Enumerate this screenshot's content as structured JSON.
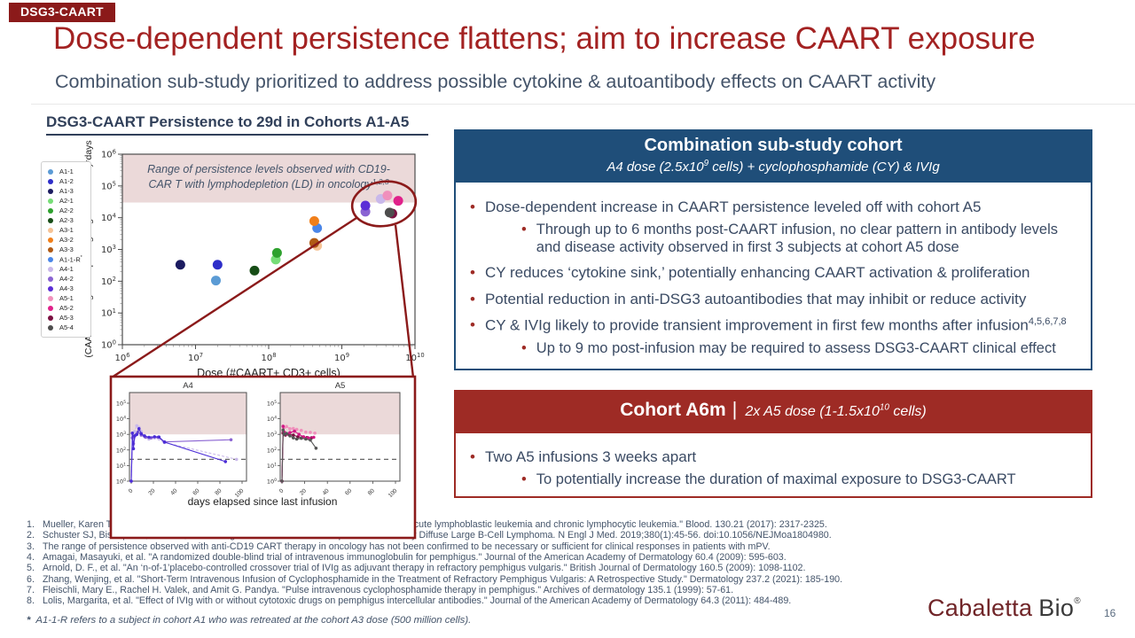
{
  "badge": "DSG3-CAART",
  "title": "Dose-dependent persistence flattens; aim to increase CAART exposure",
  "subtitle": "Combination sub-study prioritized to address possible cytokine & autoantibody effects on CAART activity",
  "colors": {
    "accent_red": "#8B1A1A",
    "title_red": "#A32222",
    "header_blue": "#1F4E79",
    "header_brick": "#9E2B25",
    "body_text": "#3A4A63",
    "band_pink": "#EBD9D9"
  },
  "chart": {
    "heading": "DSG3-CAART Persistence to 29d in Cohorts A1-A5"
  },
  "chart_data": [
    {
      "type": "scatter",
      "title": "DSG3-CAART Persistence to 29d in Cohorts A1-A5",
      "xlabel": "Dose (#CAART+ CD3+ cells)",
      "ylabel": "(CAART transgene copies/ug of genomic DNA)*days",
      "x_scale": "log",
      "y_scale": "log",
      "xlim": [
        1000000,
        10000000000
      ],
      "ylim": [
        1,
        1000000
      ],
      "shaded_band": {
        "ymin": 30000,
        "ymax": 1000000,
        "line1": "Range of persistence levels observed with CD19-",
        "line2": "CAR T with lymphodepletion (LD) in oncology",
        "sup": "1,2,3"
      },
      "legend": [
        {
          "label": "A1-1",
          "color": "#5B9BD5"
        },
        {
          "label": "A1-2",
          "color": "#2E2EC9"
        },
        {
          "label": "A1-3",
          "color": "#1B1B60"
        },
        {
          "label": "A2-1",
          "color": "#77DD77"
        },
        {
          "label": "A2-2",
          "color": "#2EA12E"
        },
        {
          "label": "A2-3",
          "color": "#174D17"
        },
        {
          "label": "A3-1",
          "color": "#F5C396"
        },
        {
          "label": "A3-2",
          "color": "#F07F1A"
        },
        {
          "label": "A3-3",
          "color": "#B05A14"
        },
        {
          "label": "A1-1-R*",
          "color": "#4A86E8"
        },
        {
          "label": "A4-1",
          "color": "#C9B8EA"
        },
        {
          "label": "A4-2",
          "color": "#8A63D2"
        },
        {
          "label": "A4-3",
          "color": "#5B2DD6"
        },
        {
          "label": "A5-1",
          "color": "#F090BC"
        },
        {
          "label": "A5-2",
          "color": "#E0218A"
        },
        {
          "label": "A5-3",
          "color": "#7A1040"
        },
        {
          "label": "A5-4",
          "color": "#4D4D4D"
        }
      ],
      "points": [
        {
          "cohort": "A1-3",
          "dose": 6200000,
          "value": 330,
          "color": "#1B1B60"
        },
        {
          "cohort": "A1-2",
          "dose": 20000000,
          "value": 330,
          "color": "#2E2EC9"
        },
        {
          "cohort": "A1-1",
          "dose": 19000000,
          "value": 105,
          "color": "#5B9BD5"
        },
        {
          "cohort": "A2-3",
          "dose": 64000000,
          "value": 215,
          "color": "#174D17"
        },
        {
          "cohort": "A2-1",
          "dose": 125000000,
          "value": 480,
          "color": "#77DD77"
        },
        {
          "cohort": "A2-2",
          "dose": 130000000,
          "value": 780,
          "color": "#2EA12E"
        },
        {
          "cohort": "A3-1",
          "dose": 460000000,
          "value": 1300,
          "color": "#F5C396"
        },
        {
          "cohort": "A3-3",
          "dose": 420000000,
          "value": 1600,
          "color": "#B05A14"
        },
        {
          "cohort": "A1-1-R",
          "dose": 460000000,
          "value": 4700,
          "color": "#4A86E8"
        },
        {
          "cohort": "A3-2",
          "dose": 420000000,
          "value": 7800,
          "color": "#F07F1A"
        },
        {
          "cohort": "A4-2",
          "dose": 2100000000,
          "value": 15500,
          "color": "#8A63D2"
        },
        {
          "cohort": "A4-3",
          "dose": 2100000000,
          "value": 24000,
          "color": "#5B2DD6"
        },
        {
          "cohort": "A4-1",
          "dose": 3400000000,
          "value": 39000,
          "color": "#C9B8EA"
        },
        {
          "cohort": "A5-1",
          "dose": 4200000000,
          "value": 50000,
          "color": "#F090BC"
        },
        {
          "cohort": "A5-2",
          "dose": 5900000000,
          "value": 34000,
          "color": "#E0218A"
        },
        {
          "cohort": "A5-3",
          "dose": 4900000000,
          "value": 13500,
          "color": "#7A1040"
        },
        {
          "cohort": "A5-4",
          "dose": 4500000000,
          "value": 14500,
          "color": "#4D4D4D"
        }
      ]
    },
    {
      "type": "line",
      "title": "A4",
      "xlabel": "days elapsed since last infusion",
      "x_range": [
        0,
        100
      ],
      "x_ticks": [
        0,
        20,
        40,
        60,
        80,
        100
      ],
      "ylim": [
        1,
        100000
      ],
      "threshold": 25,
      "band_ymin": 1000,
      "series": [
        {
          "name": "A4-1",
          "color": "#C9B8EA",
          "dash": true,
          "points": [
            [
              0,
              1
            ],
            [
              1,
              900
            ],
            [
              3,
              1500
            ],
            [
              5,
              3600
            ],
            [
              7,
              2800
            ],
            [
              9,
              1500
            ],
            [
              12,
              700
            ],
            [
              16,
              500
            ],
            [
              21,
              600
            ],
            [
              30,
              300
            ],
            [
              95,
              25
            ]
          ]
        },
        {
          "name": "A4-2",
          "color": "#8A63D2",
          "dash": false,
          "points": [
            [
              0,
              1
            ],
            [
              1,
              600
            ],
            [
              2,
              250
            ],
            [
              4,
              900
            ],
            [
              6,
              1400
            ],
            [
              9,
              900
            ],
            [
              13,
              650
            ],
            [
              18,
              600
            ],
            [
              24,
              650
            ],
            [
              30,
              330
            ],
            [
              90,
              450
            ]
          ]
        },
        {
          "name": "A4-3",
          "color": "#4B2DD6",
          "dash": false,
          "points": [
            [
              0,
              1
            ],
            [
              1,
              1200
            ],
            [
              2,
              120
            ],
            [
              3,
              800
            ],
            [
              5,
              1000
            ],
            [
              7,
              2300
            ],
            [
              9,
              1100
            ],
            [
              12,
              800
            ],
            [
              16,
              650
            ],
            [
              21,
              700
            ],
            [
              25,
              680
            ],
            [
              30,
              320
            ],
            [
              85,
              18
            ]
          ]
        }
      ]
    },
    {
      "type": "line",
      "title": "A5",
      "xlabel": "days elapsed since last infusion",
      "x_range": [
        0,
        100
      ],
      "x_ticks": [
        0,
        20,
        40,
        60,
        80,
        100
      ],
      "ylim": [
        1,
        100000
      ],
      "threshold": 25,
      "band_ymin": 1000,
      "series": [
        {
          "name": "A5-1",
          "color": "#F090BC",
          "dash": true,
          "points": [
            [
              0,
              1
            ],
            [
              1,
              1500
            ],
            [
              2,
              2800
            ],
            [
              4,
              3200
            ],
            [
              7,
              2300
            ],
            [
              10,
              2400
            ],
            [
              13,
              2100
            ],
            [
              17,
              1800
            ],
            [
              21,
              1400
            ],
            [
              25,
              1350
            ],
            [
              29,
              1200
            ]
          ]
        },
        {
          "name": "A5-3",
          "color": "#7A1040",
          "dash": false,
          "points": [
            [
              0,
              1
            ],
            [
              1,
              1200
            ],
            [
              3,
              900
            ],
            [
              6,
              1000
            ],
            [
              10,
              900
            ],
            [
              14,
              700
            ],
            [
              18,
              650
            ],
            [
              22,
              620
            ],
            [
              26,
              600
            ]
          ]
        },
        {
          "name": "A5-2",
          "color": "#D01884",
          "dash": false,
          "points": [
            [
              0,
              1
            ],
            [
              1,
              3300
            ],
            [
              2,
              1400
            ],
            [
              4,
              1100
            ],
            [
              7,
              1300
            ],
            [
              11,
              1600
            ],
            [
              15,
              1000
            ],
            [
              19,
              700
            ],
            [
              23,
              600
            ],
            [
              28,
              650
            ]
          ]
        },
        {
          "name": "A5-4",
          "color": "#555555",
          "dash": false,
          "points": [
            [
              0,
              1
            ],
            [
              1,
              1900
            ],
            [
              2,
              1000
            ],
            [
              4,
              1150
            ],
            [
              7,
              800
            ],
            [
              10,
              600
            ],
            [
              13,
              500
            ],
            [
              17,
              560
            ],
            [
              21,
              500
            ],
            [
              25,
              430
            ],
            [
              30,
              130
            ]
          ]
        }
      ]
    }
  ],
  "combo_box": {
    "title": "Combination sub-study cohort",
    "sub_prefix": "A4 dose (2.5x10",
    "sub_sup": "9",
    "sub_suffix": " cells) + cyclophosphamide (CY) & IVIg",
    "bullets": [
      {
        "level": 1,
        "text": "Dose-dependent increase in CAART persistence leveled off with cohort A5"
      },
      {
        "level": 2,
        "text": "Through up to 6 months post-CAART infusion, no clear pattern in antibody levels and disease activity observed in first 3 subjects at cohort A5 dose"
      },
      {
        "level": 1,
        "text": "CY reduces ‘cytokine sink,’ potentially enhancing CAART activation & proliferation"
      },
      {
        "level": 1,
        "text": "Potential reduction in anti-DSG3 autoantibodies that may inhibit or reduce activity"
      },
      {
        "level": 1,
        "text": "CY & IVIg likely to provide transient improvement in first few months after infusion",
        "sup": "4,5,6,7,8"
      },
      {
        "level": 2,
        "text": "Up to 9 mo post-infusion may be required to assess DSG3-CAART clinical effect"
      }
    ]
  },
  "cohort_box": {
    "title": "Cohort A6m",
    "divider": "|",
    "sub_prefix": "2x A5 dose  (1-1.5x10",
    "sub_sup": "10",
    "sub_suffix": " cells)",
    "bullets": [
      {
        "level": 1,
        "text": "Two A5 infusions 3 weeks apart"
      },
      {
        "level": 2,
        "text": "To potentially increase the duration of maximal exposure to DSG3-CAART"
      }
    ]
  },
  "footnotes": [
    {
      "num": "1.",
      "text": "Mueller, Karen Thudium, et al. \"Cellular kinetics of CTL019 in relapsed/refractory B-cell acute lymphoblastic leukemia and chronic lymphocytic leukemia.\" Blood. 130.21 (2017): 2317-2325."
    },
    {
      "num": "2.",
      "text": "Schuster SJ, Bishop MR, Tam CS, et al. Tisagenlecleucel in Adult Relapsed or Refractory Diffuse Large B-Cell Lymphoma. N Engl J Med. 2019;380(1):45-56. doi:10.1056/NEJMoa1804980."
    },
    {
      "num": "3.",
      "text": "The range of persistence observed with anti-CD19 CART therapy in oncology has not been confirmed to be necessary or sufficient for clinical responses in patients with mPV."
    },
    {
      "num": "4.",
      "text": "Amagai, Masayuki, et al. \"A randomized double-blind trial of intravenous immunoglobulin for pemphigus.\" Journal of the American Academy of Dermatology 60.4 (2009): 595-603."
    },
    {
      "num": "5.",
      "text": "Arnold, D. F., et al. \"An ‘n-of-1’placebo-controlled crossover trial of IVIg as adjuvant therapy in refractory pemphigus vulgaris.\" British Journal of Dermatology 160.5 (2009): 1098-1102."
    },
    {
      "num": "6.",
      "text": "Zhang, Wenjing, et al. \"Short-Term Intravenous Infusion of Cyclophosphamide in the Treatment of Refractory Pemphigus Vulgaris: A Retrospective Study.\" Dermatology 237.2 (2021): 185-190."
    },
    {
      "num": "7.",
      "text": "Fleischli, Mary E., Rachel H. Valek, and Amit G. Pandya. \"Pulse intravenous cyclophosphamide therapy in pemphigus.\" Archives of dermatology 135.1 (1999): 57-61."
    },
    {
      "num": "8.",
      "text": "Lolis, Margarita, et al. \"Effect of IVIg with or without cytotoxic drugs on pemphigus intercellular antibodies.\" Journal of the American Academy of Dermatology 64.3 (2011): 484-489."
    }
  ],
  "star_note": {
    "star": "*",
    "text": "A1-1-R refers to a subject in cohort A1 who was retreated at the cohort A3 dose (500 million cells)."
  },
  "logo": {
    "part1": "Cabaletta",
    "part2": "Bio",
    "reg": "®"
  },
  "page_number": "16"
}
